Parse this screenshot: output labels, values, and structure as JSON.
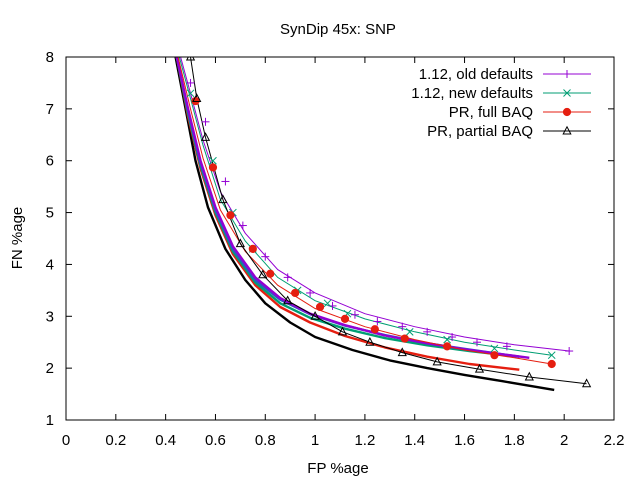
{
  "chart_data": {
    "type": "line",
    "title": "SynDip 45x: SNP",
    "xlabel": "FP %age",
    "ylabel": "FN %age",
    "xlim": [
      0,
      2.2
    ],
    "ylim": [
      1,
      8
    ],
    "xticks": [
      "0",
      "0.2",
      "0.4",
      "0.6",
      "0.8",
      "1",
      "1.2",
      "1.4",
      "1.6",
      "1.8",
      "2",
      "2.2"
    ],
    "yticks": [
      "1",
      "2",
      "3",
      "4",
      "5",
      "6",
      "7",
      "8"
    ],
    "grid": false,
    "legend_position": "top-right",
    "series": [
      {
        "name": "1.12, old defaults",
        "color": "#9400d3",
        "marker": "plus",
        "line_x": [
          0.46,
          0.5,
          0.55,
          0.62,
          0.72,
          0.85,
          1.0,
          1.2,
          1.4,
          1.6,
          1.8,
          2.02
        ],
        "line_y": [
          8.0,
          7.3,
          6.4,
          5.4,
          4.6,
          3.9,
          3.45,
          3.05,
          2.8,
          2.6,
          2.45,
          2.33
        ],
        "points_x": [
          0.5,
          0.56,
          0.64,
          0.71,
          0.8,
          0.89,
          0.98,
          1.07,
          1.16,
          1.25,
          1.35,
          1.45,
          1.55,
          1.65,
          1.77,
          2.02
        ],
        "points_y": [
          7.5,
          6.75,
          5.6,
          4.75,
          4.15,
          3.75,
          3.45,
          3.2,
          3.03,
          2.9,
          2.8,
          2.7,
          2.6,
          2.5,
          2.42,
          2.33
        ]
      },
      {
        "name": "1.12, new defaults",
        "color": "#009e73",
        "marker": "cross",
        "line_x": [
          0.455,
          0.5,
          0.55,
          0.62,
          0.72,
          0.85,
          1.0,
          1.2,
          1.4,
          1.6,
          1.8,
          1.95
        ],
        "line_y": [
          8.0,
          7.2,
          6.3,
          5.25,
          4.45,
          3.75,
          3.3,
          2.95,
          2.7,
          2.5,
          2.35,
          2.25
        ],
        "points_x": [
          0.5,
          0.59,
          0.67,
          0.75,
          0.93,
          1.05,
          1.13,
          1.38,
          1.53,
          1.72,
          1.95
        ],
        "points_y": [
          7.3,
          6.0,
          5.0,
          4.3,
          3.5,
          3.25,
          3.05,
          2.7,
          2.55,
          2.38,
          2.25
        ]
      },
      {
        "name": "PR, full BAQ",
        "color": "#e51e10",
        "marker": "circle",
        "line_x": [
          0.45,
          0.5,
          0.55,
          0.62,
          0.72,
          0.85,
          1.0,
          1.2,
          1.4,
          1.6,
          1.8,
          1.95
        ],
        "line_y": [
          8.0,
          7.0,
          6.05,
          5.05,
          4.25,
          3.6,
          3.15,
          2.8,
          2.55,
          2.35,
          2.2,
          2.08
        ],
        "points_x": [
          0.52,
          0.59,
          0.66,
          0.75,
          0.82,
          0.92,
          1.02,
          1.12,
          1.24,
          1.36,
          1.53,
          1.72,
          1.95
        ],
        "points_y": [
          7.15,
          5.87,
          4.95,
          4.3,
          3.82,
          3.45,
          3.18,
          2.95,
          2.75,
          2.57,
          2.42,
          2.25,
          2.08
        ]
      },
      {
        "name": "PR, partial BAQ",
        "color": "#000000",
        "marker": "triangle",
        "line_x": [
          0.5,
          0.525,
          0.56,
          0.63,
          0.7,
          0.79,
          0.89,
          1.0,
          1.11,
          1.22,
          1.35,
          1.49,
          1.66,
          1.86,
          2.09
        ],
        "line_y": [
          8.0,
          7.2,
          6.45,
          5.25,
          4.4,
          3.8,
          3.3,
          3.0,
          2.7,
          2.5,
          2.3,
          2.12,
          1.98,
          1.83,
          1.7
        ],
        "points_x": [
          0.5,
          0.525,
          0.56,
          0.63,
          0.7,
          0.79,
          0.89,
          1.0,
          1.11,
          1.22,
          1.35,
          1.49,
          1.66,
          1.86,
          2.09
        ],
        "points_y": [
          8.0,
          7.2,
          6.45,
          5.25,
          4.4,
          3.8,
          3.3,
          3.0,
          2.7,
          2.5,
          2.3,
          2.12,
          1.98,
          1.83,
          1.7
        ]
      }
    ],
    "unlabeled_curves": [
      {
        "color": "#000000",
        "x": [
          0.44,
          0.48,
          0.52,
          0.57,
          0.64,
          0.72,
          0.8,
          0.9,
          1.0,
          1.15,
          1.3,
          1.45,
          1.6,
          1.75,
          1.96
        ],
        "y": [
          8.0,
          7.0,
          6.0,
          5.1,
          4.3,
          3.7,
          3.25,
          2.88,
          2.6,
          2.35,
          2.15,
          2.0,
          1.87,
          1.75,
          1.58
        ]
      },
      {
        "color": "#e51e10",
        "x": [
          0.445,
          0.49,
          0.54,
          0.6,
          0.67,
          0.76,
          0.86,
          0.98,
          1.12,
          1.28,
          1.45,
          1.62,
          1.82
        ],
        "y": [
          8.0,
          6.85,
          5.85,
          4.95,
          4.2,
          3.6,
          3.18,
          2.88,
          2.62,
          2.4,
          2.22,
          2.08,
          1.97
        ]
      },
      {
        "color": "#009e73",
        "x": [
          0.445,
          0.49,
          0.54,
          0.6,
          0.67,
          0.76,
          0.86,
          0.98,
          1.12,
          1.28,
          1.45,
          1.62,
          1.82
        ],
        "y": [
          8.0,
          6.9,
          5.9,
          5.0,
          4.25,
          3.65,
          3.25,
          2.97,
          2.76,
          2.58,
          2.44,
          2.33,
          2.22
        ]
      },
      {
        "color": "#2f56c4",
        "x": [
          0.445,
          0.49,
          0.54,
          0.6,
          0.67,
          0.76,
          0.86,
          0.98,
          1.12,
          1.28,
          1.45,
          1.62,
          1.82
        ],
        "y": [
          8.0,
          6.95,
          5.95,
          5.05,
          4.3,
          3.7,
          3.32,
          3.04,
          2.82,
          2.64,
          2.48,
          2.36,
          2.22
        ]
      },
      {
        "color": "#9400d3",
        "x": [
          0.445,
          0.49,
          0.54,
          0.6,
          0.67,
          0.76,
          0.86,
          0.98,
          1.12,
          1.28,
          1.45,
          1.62,
          1.86
        ],
        "y": [
          8.0,
          7.0,
          6.0,
          5.1,
          4.35,
          3.75,
          3.35,
          3.05,
          2.83,
          2.63,
          2.48,
          2.35,
          2.2
        ]
      }
    ]
  }
}
